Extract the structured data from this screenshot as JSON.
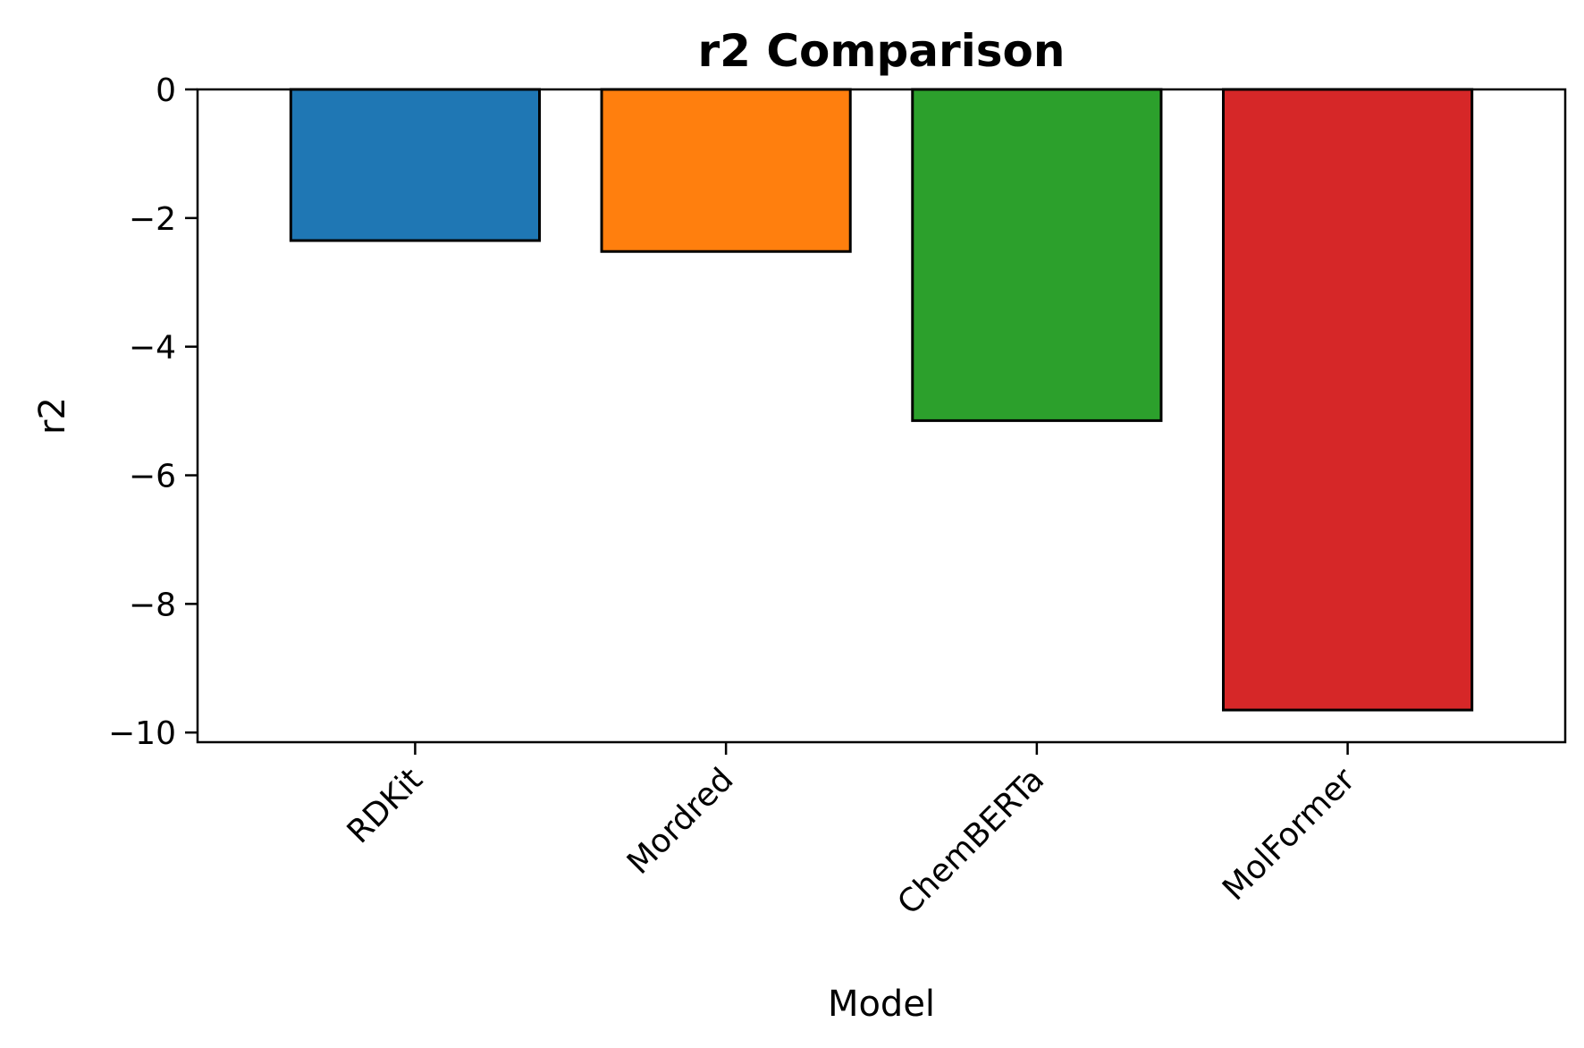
{
  "chart_data": {
    "type": "bar",
    "title": "r2 Comparison",
    "xlabel": "Model",
    "ylabel": "r2",
    "categories": [
      "RDKit",
      "Mordred",
      "ChemBERTa",
      "MolFormer"
    ],
    "values": [
      -2.35,
      -2.52,
      -5.15,
      -9.65
    ],
    "colors": [
      "#1f77b4",
      "#ff7f0e",
      "#2ca02c",
      "#d62728"
    ],
    "edge_color": "#000000",
    "ylim": [
      -10.15,
      0
    ],
    "yticks": [
      0,
      -2,
      -4,
      -6,
      -8,
      -10
    ],
    "ytick_labels": [
      "0",
      "−2",
      "−4",
      "−6",
      "−8",
      "−10"
    ],
    "grid": false,
    "legend": "none"
  }
}
